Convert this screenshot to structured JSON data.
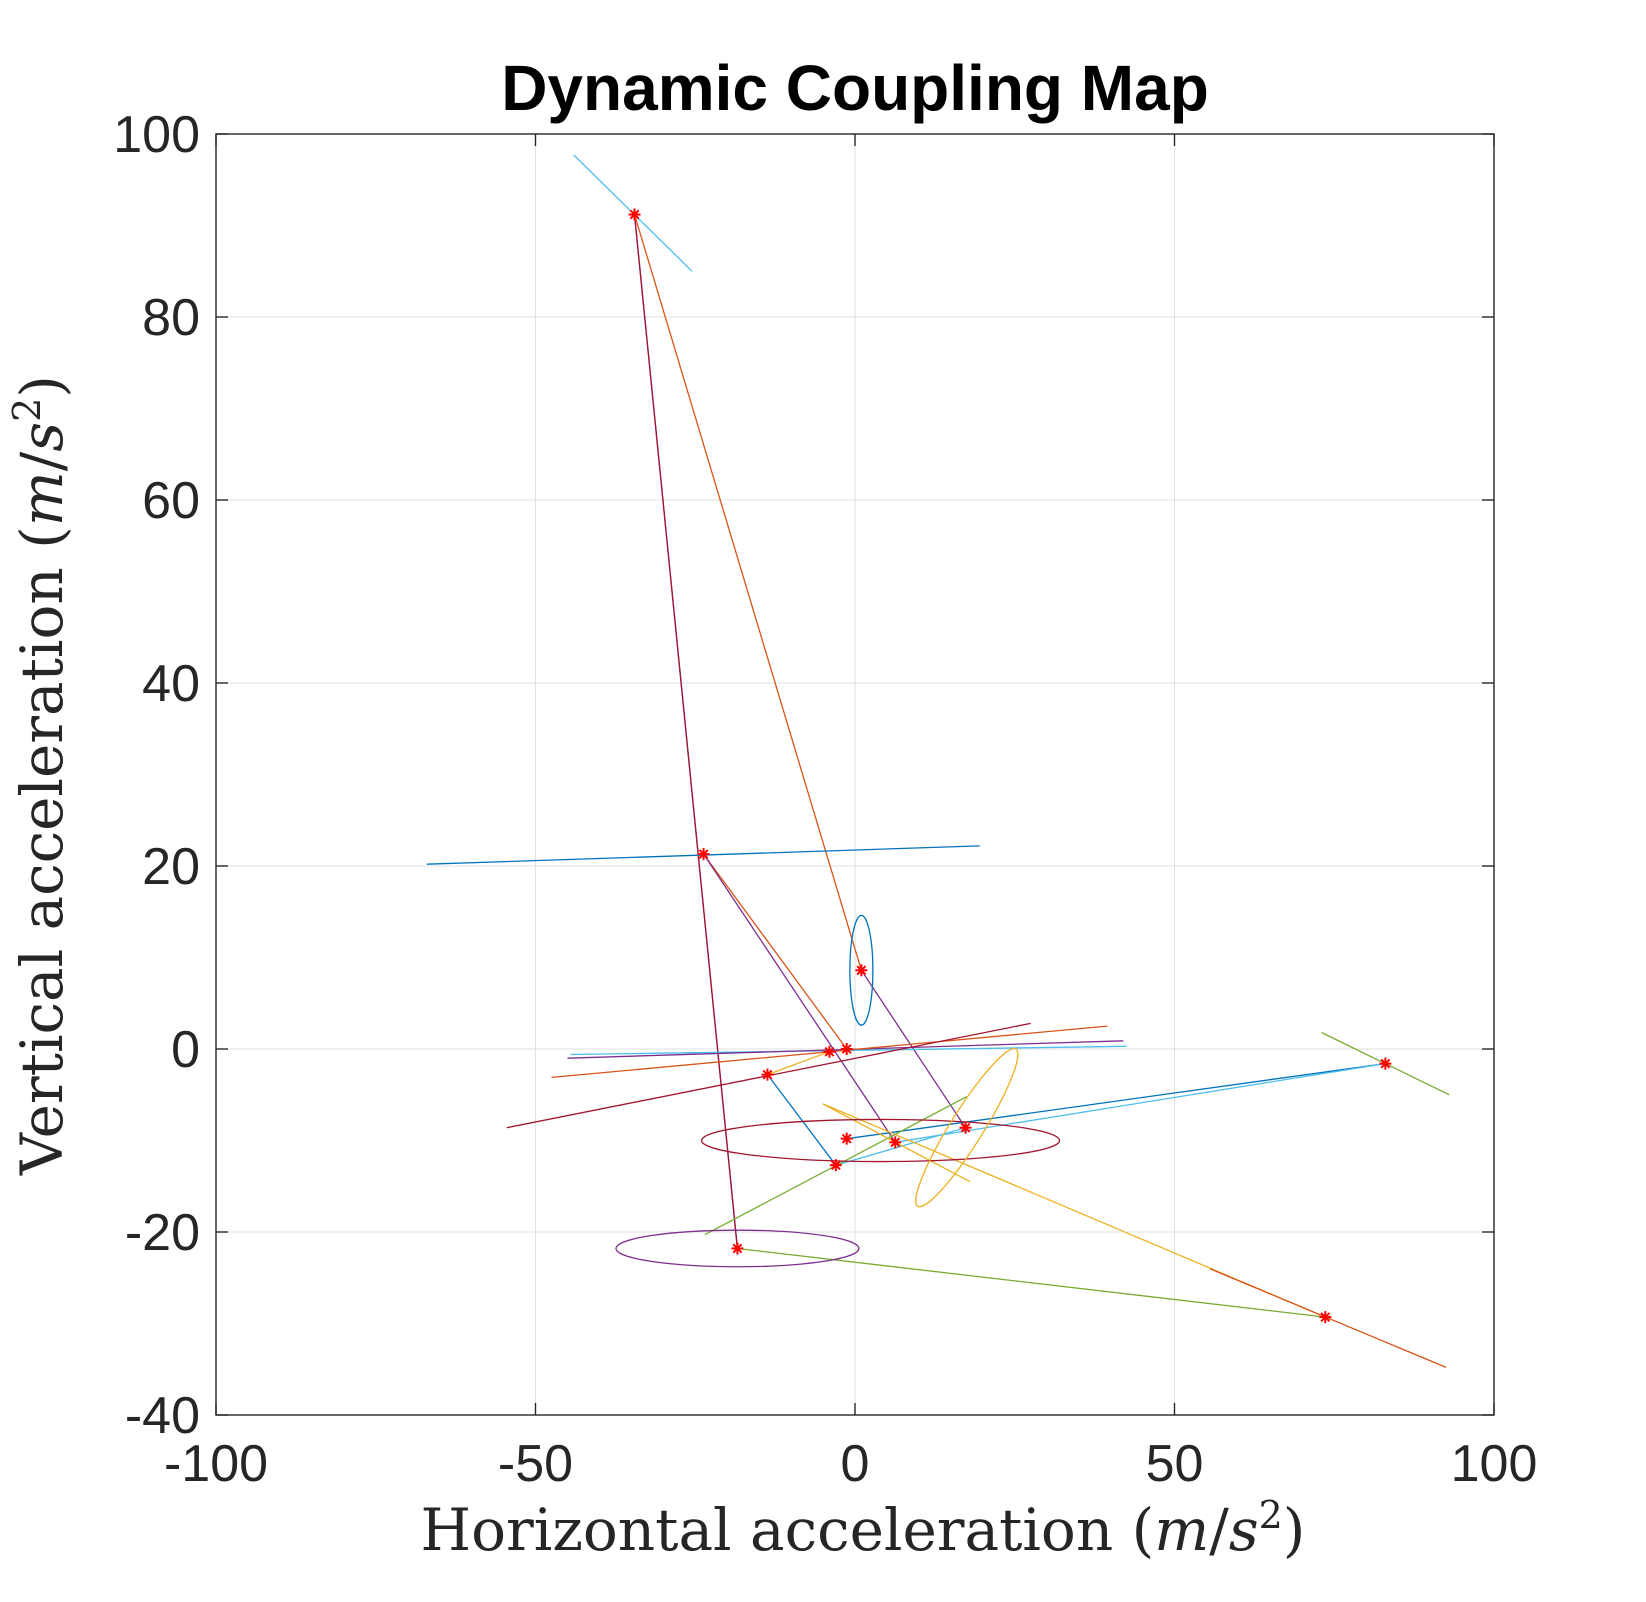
{
  "chart_data": {
    "type": "line",
    "title": "Dynamic Coupling Map",
    "xlabel_prefix": "Horizontal acceleration ",
    "ylabel_prefix": "Vertical acceleration ",
    "unit": {
      "open": "(",
      "m": "m",
      "slash": "/",
      "s": "s",
      "exp": "2",
      "close": ")"
    },
    "xlim": [
      -100,
      100
    ],
    "ylim": [
      -40,
      100
    ],
    "xticks": [
      -100,
      -50,
      0,
      50,
      100
    ],
    "yticks": [
      -40,
      -20,
      0,
      20,
      40,
      60,
      80,
      100
    ],
    "xtick_labels": [
      "-100",
      "-50",
      "0",
      "50",
      "100"
    ],
    "ytick_labels": [
      "-40",
      "-20",
      "0",
      "20",
      "40",
      "60",
      "80",
      "100"
    ],
    "grid": true,
    "legend": "none",
    "marker_color": "#ff0000",
    "points": [
      {
        "x": -34.5,
        "y": 91.2
      },
      {
        "x": -23.7,
        "y": 21.3
      },
      {
        "x": 1.0,
        "y": 8.6
      },
      {
        "x": -1.3,
        "y": 0.0
      },
      {
        "x": -4.0,
        "y": -0.3
      },
      {
        "x": -13.7,
        "y": -2.8
      },
      {
        "x": -1.3,
        "y": -9.8
      },
      {
        "x": -3.0,
        "y": -12.7
      },
      {
        "x": 6.3,
        "y": -10.2
      },
      {
        "x": 17.3,
        "y": -8.6
      },
      {
        "x": 83.0,
        "y": -1.6
      },
      {
        "x": 73.6,
        "y": -29.3
      },
      {
        "x": -18.4,
        "y": -21.8
      }
    ],
    "trajectories": [
      {
        "color": "#7e2f8e",
        "points": [
          [
            -34.5,
            91.2
          ],
          [
            -18.4,
            -21.8
          ]
        ]
      },
      {
        "color": "#a2142f",
        "points": [
          [
            -34.5,
            91.2
          ],
          [
            -18.4,
            -21.8
          ]
        ]
      },
      {
        "color": "#d95319",
        "points": [
          [
            -34.5,
            91.2
          ],
          [
            1.0,
            8.6
          ]
        ]
      },
      {
        "color": "#d95319",
        "points": [
          [
            -23.7,
            21.3
          ],
          [
            -1.3,
            0.0
          ]
        ]
      },
      {
        "color": "#7e2f8e",
        "points": [
          [
            -23.7,
            21.3
          ],
          [
            6.3,
            -10.2
          ]
        ]
      },
      {
        "color": "#7e2f8e",
        "points": [
          [
            1.0,
            8.6
          ],
          [
            17.3,
            -8.6
          ]
        ]
      },
      {
        "color": "#0072bd",
        "points": [
          [
            -13.7,
            -2.8
          ],
          [
            -3.0,
            -12.7
          ]
        ]
      },
      {
        "color": "#4dbeee",
        "points": [
          [
            -3.0,
            -12.7
          ],
          [
            17.3,
            -8.6
          ]
        ]
      },
      {
        "color": "#0072bd",
        "points": [
          [
            -1.3,
            -9.8
          ],
          [
            83.0,
            -1.6
          ]
        ]
      },
      {
        "color": "#4dbeee",
        "points": [
          [
            6.3,
            -10.2
          ],
          [
            83.0,
            -1.6
          ]
        ]
      },
      {
        "color": "#edb120",
        "points": [
          [
            -13.7,
            -2.8
          ],
          [
            -4.0,
            -0.3
          ]
        ]
      },
      {
        "color": "#edb120",
        "points": [
          [
            -5.0,
            -6.0
          ],
          [
            73.6,
            -29.3
          ]
        ]
      },
      {
        "color": "#77ac30",
        "points": [
          [
            -18.4,
            -21.8
          ],
          [
            73.6,
            -29.3
          ]
        ]
      },
      {
        "color": "#0072bd",
        "points": [
          [
            -67.0,
            20.2
          ],
          [
            19.5,
            22.2
          ]
        ]
      },
      {
        "color": "#4dbeee",
        "points": [
          [
            -44.5,
            -0.6
          ],
          [
            42.5,
            0.3
          ]
        ]
      },
      {
        "color": "#7e2f8e",
        "points": [
          [
            -45.0,
            -1.0
          ],
          [
            42.0,
            0.9
          ]
        ]
      },
      {
        "color": "#d95319",
        "points": [
          [
            -47.5,
            -3.1
          ],
          [
            39.5,
            2.5
          ]
        ]
      },
      {
        "color": "#a2142f",
        "points": [
          [
            -54.5,
            -8.6
          ],
          [
            27.5,
            2.8
          ]
        ]
      },
      {
        "color": "#4dbeee",
        "points": [
          [
            -44.0,
            97.7
          ],
          [
            -25.5,
            85.0
          ]
        ]
      },
      {
        "color": "#77ac30",
        "points": [
          [
            -23.5,
            -20.3
          ],
          [
            17.5,
            -5.2
          ]
        ]
      },
      {
        "color": "#77ac30",
        "points": [
          [
            73.0,
            1.8
          ],
          [
            93.0,
            -5.0
          ]
        ]
      },
      {
        "color": "#d95319",
        "points": [
          [
            55.5,
            -24.0
          ],
          [
            92.5,
            -34.8
          ]
        ]
      },
      {
        "color": "#edb120",
        "points": [
          [
            -5.0,
            -6.0
          ],
          [
            18.0,
            -14.5
          ]
        ]
      }
    ],
    "ellipses": [
      {
        "color": "#0072bd",
        "cx": 1.0,
        "cy": 8.6,
        "rx": 1.8,
        "ry": 6.0,
        "rot": 0
      },
      {
        "color": "#7e2f8e",
        "cx": -18.4,
        "cy": -21.8,
        "rx": 19.0,
        "ry": 2.0,
        "rot": 0
      },
      {
        "color": "#a2142f",
        "cx": 4.0,
        "cy": -10.0,
        "rx": 28.0,
        "ry": 2.3,
        "rot": 0
      },
      {
        "color": "#edb120",
        "cx": 17.5,
        "cy": -8.6,
        "rx": 14.5,
        "ry": 1.8,
        "rot": -58
      }
    ]
  }
}
